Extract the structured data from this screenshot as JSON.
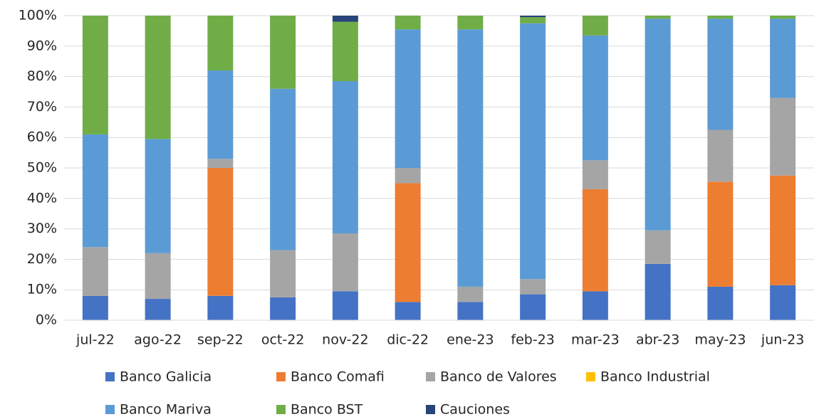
{
  "chart_data": {
    "type": "stacked_bar",
    "categories": [
      "jul-22",
      "ago-22",
      "sep-22",
      "oct-22",
      "nov-22",
      "dic-22",
      "ene-23",
      "feb-23",
      "mar-23",
      "abr-23",
      "may-23",
      "jun-23"
    ],
    "series": [
      {
        "name": "Banco Galicia",
        "color": "#4472c4",
        "values": [
          8,
          7,
          8,
          7.5,
          9.5,
          6,
          6,
          8.5,
          9.5,
          18.5,
          11,
          11.5
        ]
      },
      {
        "name": "Banco Comafi",
        "color": "#ed7d31",
        "values": [
          0,
          0,
          42,
          0,
          0,
          39,
          0,
          0,
          33.5,
          0,
          34.5,
          36
        ]
      },
      {
        "name": "Banco de Valores",
        "color": "#a5a5a5",
        "values": [
          16,
          15,
          3,
          15.5,
          19,
          5,
          5,
          5,
          9.5,
          11,
          17,
          25.5
        ]
      },
      {
        "name": "Banco Industrial",
        "color": "#ffc000",
        "values": [
          0,
          0,
          0,
          0,
          0,
          0,
          0,
          0,
          0,
          0,
          0,
          0
        ]
      },
      {
        "name": "Banco Mariva",
        "color": "#5b9bd5",
        "values": [
          37,
          37.5,
          29,
          53,
          50,
          45.5,
          84.5,
          84,
          41,
          69.5,
          36.5,
          26
        ]
      },
      {
        "name": "Banco BST",
        "color": "#70ad47",
        "values": [
          39,
          40.5,
          18,
          24,
          19.5,
          4.5,
          4.5,
          2,
          6.5,
          1,
          1,
          1
        ]
      },
      {
        "name": "Cauciones",
        "color": "#264478",
        "values": [
          0,
          0,
          0,
          0,
          2,
          0,
          0,
          0.5,
          0,
          0,
          0,
          0
        ]
      }
    ],
    "ylim": [
      0,
      100
    ],
    "yticks": [
      {
        "value": 0,
        "label": "0%"
      },
      {
        "value": 10,
        "label": "10%"
      },
      {
        "value": 20,
        "label": "20%"
      },
      {
        "value": 30,
        "label": "30%"
      },
      {
        "value": 40,
        "label": "40%"
      },
      {
        "value": 50,
        "label": "50%"
      },
      {
        "value": 60,
        "label": "60%"
      },
      {
        "value": 70,
        "label": "70%"
      },
      {
        "value": 80,
        "label": "80%"
      },
      {
        "value": 90,
        "label": "90%"
      },
      {
        "value": 100,
        "label": "100%"
      }
    ],
    "grid": true,
    "legend": "bottom"
  }
}
